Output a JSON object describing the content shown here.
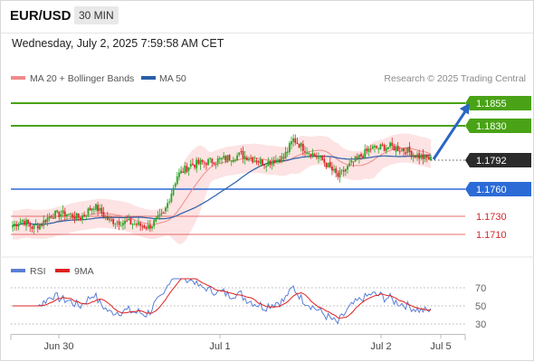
{
  "header": {
    "pair": "EUR/USD",
    "timeframe": "30 MIN"
  },
  "timestamp": "Wednesday, July 2, 2025 7:59:58 AM CET",
  "colors": {
    "support": "#2c6bd6",
    "resistance": "#4aa316",
    "bull": "#27a822",
    "bear": "#d9262a",
    "bb_fill": "#fde0e0",
    "ma20": "#f08a8a",
    "ma50": "#2a5fa8",
    "rsi": "#5b7fd6",
    "rsi_ma": "#e02020",
    "arrow": "#2a66c4",
    "current": "#2b2b2b"
  },
  "chart_data": [
    {
      "type": "candlestick",
      "legend": [
        {
          "label": "MA 20 + Bollinger Bands",
          "color": "#f08a8a"
        },
        {
          "label": "MA 50",
          "color": "#2a5fa8"
        }
      ],
      "credit": "Research © 2025 Trading Central",
      "x_ticks": [
        "Jun 30",
        "Jul 1",
        "Jul 2",
        "Jul 5"
      ],
      "y_range": [
        1.1693,
        1.1873
      ],
      "current_price": "1.1792",
      "levels": [
        {
          "value": 1.1855,
          "label": "1.1855",
          "kind": "resistance"
        },
        {
          "value": 1.183,
          "label": "1.1830",
          "kind": "resistance"
        },
        {
          "value": 1.176,
          "label": "1.1760",
          "kind": "support"
        },
        {
          "value": 1.173,
          "label": "1.1730",
          "kind": "minor"
        },
        {
          "value": 1.171,
          "label": "1.1710",
          "kind": "minor"
        }
      ],
      "anchors": [
        [
          0,
          1.172
        ],
        [
          5,
          1.1726
        ],
        [
          10,
          1.1718
        ],
        [
          15,
          1.1722
        ],
        [
          20,
          1.1732
        ],
        [
          28,
          1.1733
        ],
        [
          35,
          1.1728
        ],
        [
          42,
          1.1742
        ],
        [
          50,
          1.1725
        ],
        [
          60,
          1.1723
        ],
        [
          70,
          1.1718
        ],
        [
          78,
          1.1732
        ],
        [
          85,
          1.1775
        ],
        [
          92,
          1.1787
        ],
        [
          100,
          1.179
        ],
        [
          108,
          1.1793
        ],
        [
          118,
          1.1798
        ],
        [
          130,
          1.1789
        ],
        [
          140,
          1.1795
        ],
        [
          145,
          1.1815
        ],
        [
          150,
          1.1806
        ],
        [
          160,
          1.1792
        ],
        [
          168,
          1.1774
        ],
        [
          176,
          1.179
        ],
        [
          185,
          1.1805
        ],
        [
          195,
          1.1807
        ],
        [
          203,
          1.1803
        ],
        [
          210,
          1.1796
        ],
        [
          216,
          1.1793
        ]
      ],
      "forecast": {
        "from": [
          216,
          1.1793
        ],
        "to": [
          236,
          1.1855
        ]
      }
    },
    {
      "type": "line",
      "legend": [
        {
          "label": "RSI",
          "color": "#5b7fd6"
        },
        {
          "label": "9MA",
          "color": "#e02020"
        }
      ],
      "y_ticks": [
        "70",
        "50",
        "30"
      ],
      "y_range": [
        20,
        80
      ]
    }
  ]
}
